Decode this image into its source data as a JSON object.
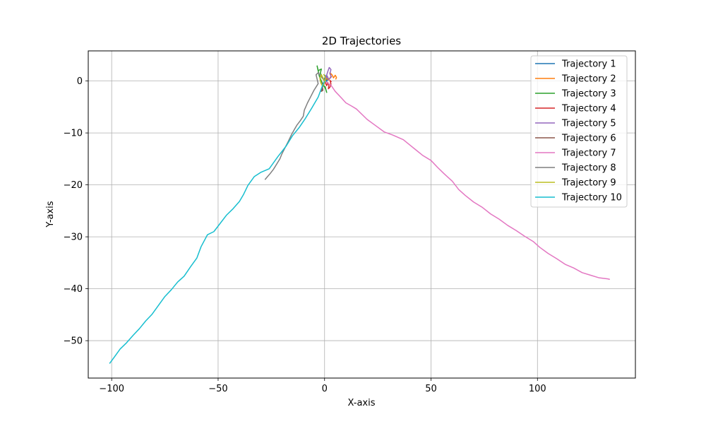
{
  "chart_data": {
    "type": "line",
    "title": "2D Trajectories",
    "xlabel": "X-axis",
    "ylabel": "Y-axis",
    "xlim": [
      -111,
      146
    ],
    "ylim": [
      -57.2,
      5.8
    ],
    "xticks": [
      -100,
      -50,
      0,
      50,
      100
    ],
    "yticks": [
      -50,
      -40,
      -30,
      -20,
      -10,
      0
    ],
    "xtick_labels": [
      "−100",
      "−50",
      "0",
      "50",
      "100"
    ],
    "ytick_labels": [
      "−50",
      "−40",
      "−30",
      "−20",
      "−10",
      "0"
    ],
    "grid": true,
    "legend_position": "top-right",
    "series": [
      {
        "name": "Trajectory 1",
        "color": "#1f77b4",
        "x": [
          0,
          0.6,
          0.2,
          1.0,
          0.5,
          -0.3,
          0.4,
          1.2,
          0.8,
          1.5
        ],
        "y": [
          0,
          0.6,
          1.1,
          0.4,
          -0.3,
          0.2,
          0.9,
          0.5,
          -0.2,
          0.3
        ]
      },
      {
        "name": "Trajectory 2",
        "color": "#ff7f0e",
        "x": [
          0,
          1.0,
          2.0,
          3.0,
          2.5,
          3.5,
          4.2,
          5.0,
          5.6,
          5.2
        ],
        "y": [
          0,
          0.5,
          0.2,
          0.9,
          1.6,
          1.2,
          0.6,
          1.1,
          0.7,
          0.3
        ]
      },
      {
        "name": "Trajectory 3",
        "color": "#2ca02c",
        "x": [
          0,
          -1.0,
          -2.0,
          -1.5,
          -3.0,
          -3.5,
          -2.5,
          -1.0,
          0.5,
          1.0,
          0.2
        ],
        "y": [
          0,
          0.8,
          1.5,
          2.3,
          2.0,
          2.9,
          1.0,
          -0.5,
          -1.5,
          -2.2,
          -1.0
        ]
      },
      {
        "name": "Trajectory 4",
        "color": "#d62728",
        "x": [
          0,
          0.5,
          1.0,
          1.5,
          2.0,
          1.8,
          2.5,
          3.0,
          2.6,
          3.2
        ],
        "y": [
          0,
          -0.4,
          -0.9,
          -0.3,
          -0.8,
          -1.5,
          -1.2,
          -0.6,
          0.1,
          -0.2
        ]
      },
      {
        "name": "Trajectory 5",
        "color": "#9467bd",
        "x": [
          0,
          0.8,
          1.5,
          2.2,
          3.0,
          2.5,
          3.2,
          2.0,
          1.2,
          0.5
        ],
        "y": [
          0,
          0.9,
          1.8,
          2.6,
          2.2,
          1.4,
          0.8,
          0.3,
          1.0,
          0.4
        ]
      },
      {
        "name": "Trajectory 6",
        "color": "#8c564b",
        "x": [
          0,
          -0.5,
          -1.0,
          -0.8,
          -1.5,
          -1.2,
          -0.6,
          -1.0
        ],
        "y": [
          0,
          -0.6,
          -1.2,
          -1.8,
          -2.0,
          -1.4,
          -0.8,
          -0.3
        ]
      },
      {
        "name": "Trajectory 7",
        "color": "#e377c2",
        "x": [
          0,
          3,
          5,
          8,
          10,
          13,
          15,
          18,
          20,
          24,
          28,
          32,
          37,
          40,
          43,
          46,
          50,
          53,
          56,
          60,
          63,
          66,
          70,
          74,
          78,
          82,
          86,
          90,
          94,
          98,
          101,
          105,
          109,
          113,
          117,
          121,
          125,
          129,
          133,
          134
        ],
        "y": [
          0,
          -0.8,
          -2.0,
          -3.3,
          -4.2,
          -4.9,
          -5.4,
          -6.6,
          -7.4,
          -8.6,
          -9.8,
          -10.4,
          -11.3,
          -12.3,
          -13.3,
          -14.3,
          -15.3,
          -16.6,
          -17.8,
          -19.3,
          -20.9,
          -22.0,
          -23.3,
          -24.3,
          -25.6,
          -26.6,
          -27.8,
          -28.8,
          -29.9,
          -30.9,
          -32.0,
          -33.2,
          -34.2,
          -35.3,
          -36.0,
          -36.9,
          -37.4,
          -37.9,
          -38.1,
          -38.2
        ]
      },
      {
        "name": "Trajectory 8",
        "color": "#7f7f7f",
        "x": [
          0,
          -1.5,
          -3.0,
          -4.0,
          -3.0,
          -5.0,
          -6.5,
          -8.0,
          -9.5,
          -10.0,
          -11.5,
          -13.0,
          -14.0,
          -15.5,
          -17.0,
          -18.5,
          -20.0,
          -21.0,
          -22.5,
          -24.0,
          -25.5,
          -27.0,
          -28.0
        ],
        "y": [
          0,
          0.8,
          1.6,
          1.2,
          -0.5,
          -1.8,
          -3.0,
          -4.2,
          -5.6,
          -6.8,
          -7.7,
          -8.5,
          -9.2,
          -10.3,
          -11.6,
          -12.8,
          -14.0,
          -15.0,
          -16.0,
          -17.0,
          -17.8,
          -18.5,
          -19.0
        ]
      },
      {
        "name": "Trajectory 9",
        "color": "#bcbd22",
        "x": [
          0,
          -0.8,
          -1.5,
          -2.2,
          -1.8,
          -1.0,
          -0.3,
          0.5,
          0.2,
          -0.5
        ],
        "y": [
          0,
          0.6,
          1.2,
          0.5,
          -0.3,
          -1.0,
          -0.6,
          0.2,
          0.9,
          1.3
        ]
      },
      {
        "name": "Trajectory 10",
        "color": "#17becf",
        "x": [
          0,
          -1,
          -3,
          -6,
          -9,
          -12,
          -15,
          -18,
          -22,
          -26,
          -30,
          -33,
          -36,
          -38,
          -40,
          -43,
          -46,
          -49,
          -52,
          -55,
          -58,
          -60,
          -63,
          -66,
          -69,
          -72,
          -75,
          -78,
          -81,
          -84,
          -87,
          -90,
          -93,
          -96,
          -99,
          -101
        ],
        "y": [
          0,
          -0.9,
          -3.1,
          -5.2,
          -7.2,
          -9.0,
          -10.5,
          -12.5,
          -14.6,
          -16.9,
          -17.6,
          -18.4,
          -20.1,
          -21.8,
          -23.2,
          -24.6,
          -25.8,
          -27.4,
          -29.0,
          -29.6,
          -31.9,
          -34.1,
          -35.8,
          -37.6,
          -38.7,
          -40.2,
          -41.5,
          -43.2,
          -44.9,
          -46.2,
          -47.7,
          -49.0,
          -50.4,
          -51.6,
          -53.3,
          -54.4
        ]
      }
    ]
  }
}
